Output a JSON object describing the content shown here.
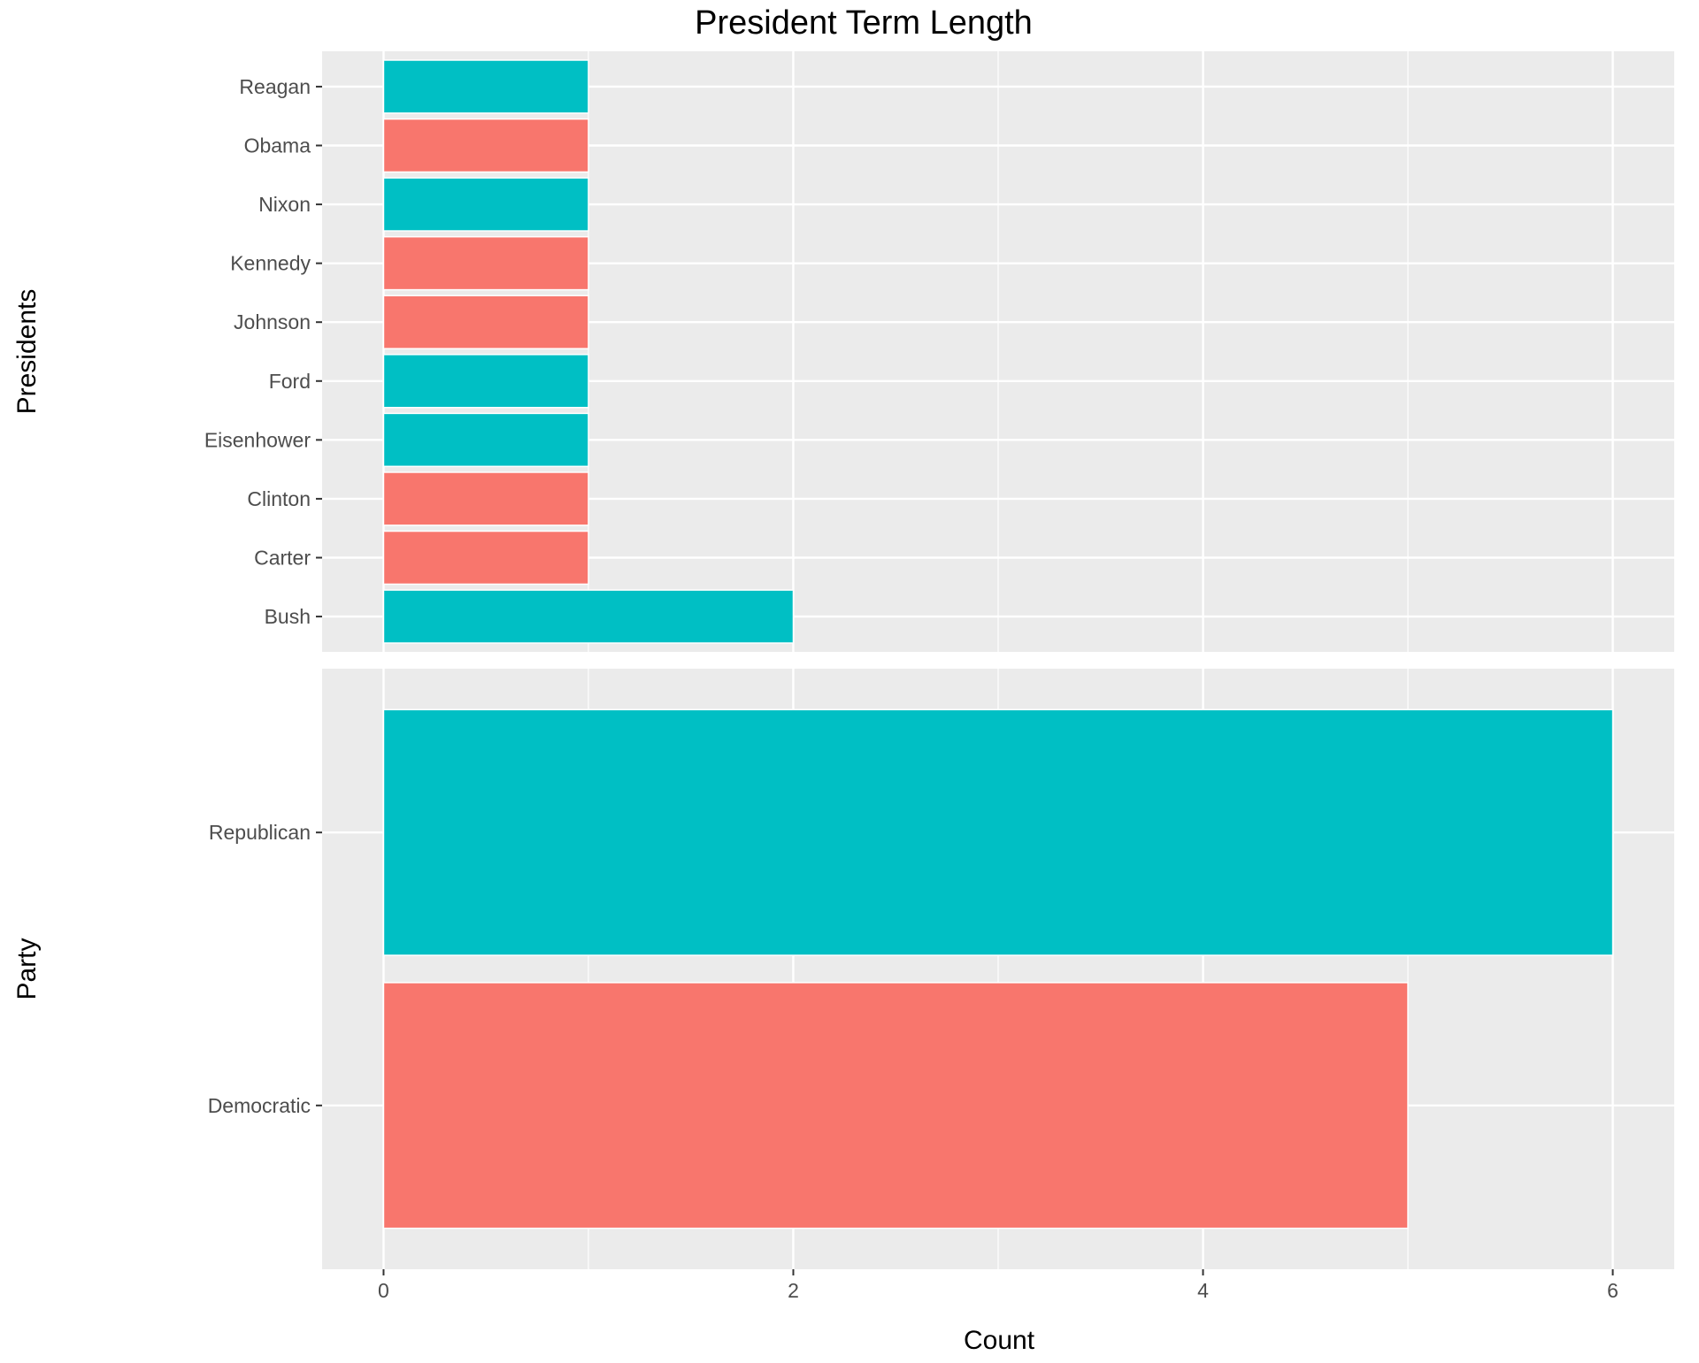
{
  "chart_data": {
    "type": "bar",
    "orientation": "horizontal",
    "title": "President Term Length",
    "xlabel": "Count",
    "xlim": [
      -0.3,
      6.3
    ],
    "xticks": [
      0,
      2,
      4,
      6
    ],
    "grid": true,
    "legend": "none",
    "colors": {
      "Democratic": "#F8766D",
      "Republican": "#00BFC4",
      "panel_background": "#EBEBEB",
      "grid": "#FFFFFF"
    },
    "panels": [
      {
        "ylabel": "Presidents",
        "categories": [
          "Reagan",
          "Obama",
          "Nixon",
          "Kennedy",
          "Johnson",
          "Ford",
          "Eisenhower",
          "Clinton",
          "Carter",
          "Bush"
        ],
        "values": [
          1,
          1,
          1,
          1,
          1,
          1,
          1,
          1,
          1,
          2
        ],
        "groups": [
          "Republican",
          "Democratic",
          "Republican",
          "Democratic",
          "Democratic",
          "Republican",
          "Republican",
          "Democratic",
          "Democratic",
          "Republican"
        ]
      },
      {
        "ylabel": "Party",
        "categories": [
          "Republican",
          "Democratic"
        ],
        "values": [
          6,
          5
        ],
        "groups": [
          "Republican",
          "Democratic"
        ]
      }
    ]
  }
}
